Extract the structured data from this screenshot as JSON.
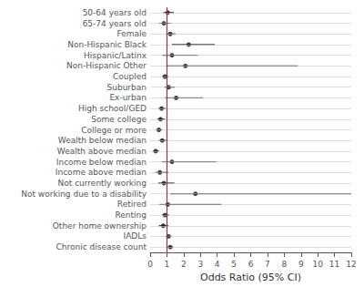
{
  "chart_data": {
    "type": "forest",
    "orientation": "horizontal",
    "categories": [
      "50-64 years old",
      "65-74 years old",
      "Female",
      "Non-Hispanic Black",
      "Hispanic/Latinx",
      "Non-Hispanic Other",
      "Coupled",
      "Suburban",
      "Ex-urban",
      "High school/GED",
      "Some college",
      "College or more",
      "Wealth below median",
      "Wealth above median",
      "Income below median",
      "Income above median",
      "Not currently working",
      "Not working due to a disability",
      "Retired",
      "Renting",
      "Other home ownership",
      "IADLs",
      "Chronic disease count"
    ],
    "values": [
      1.05,
      0.82,
      1.2,
      2.3,
      1.3,
      2.1,
      0.88,
      1.1,
      1.55,
      0.68,
      0.62,
      0.52,
      0.72,
      0.33,
      1.3,
      0.58,
      0.82,
      2.7,
      1.05,
      0.88,
      0.78,
      1.1,
      1.2
    ],
    "ci_low": [
      0.78,
      0.55,
      0.95,
      1.3,
      0.72,
      0.95,
      0.72,
      0.85,
      0.88,
      0.5,
      0.43,
      0.36,
      0.52,
      0.18,
      0.7,
      0.32,
      0.48,
      1.2,
      0.55,
      0.72,
      0.52,
      0.92,
      1.05
    ],
    "ci_high": [
      1.42,
      1.22,
      1.52,
      3.85,
      2.85,
      8.8,
      1.08,
      1.48,
      3.15,
      0.93,
      0.88,
      0.72,
      1.02,
      0.52,
      3.95,
      1.08,
      1.45,
      12.0,
      4.25,
      1.12,
      1.08,
      1.28,
      1.38
    ],
    "color": "#111111",
    "reference_line": {
      "value": 1.0,
      "color": "#8B3A3A"
    },
    "xlabel": "Odds Ratio (95% CI)",
    "xlim": [
      0,
      12
    ],
    "xticks": [
      0,
      1,
      2,
      3,
      4,
      5,
      6,
      7,
      8,
      9,
      10,
      11,
      12
    ],
    "grid": true
  }
}
